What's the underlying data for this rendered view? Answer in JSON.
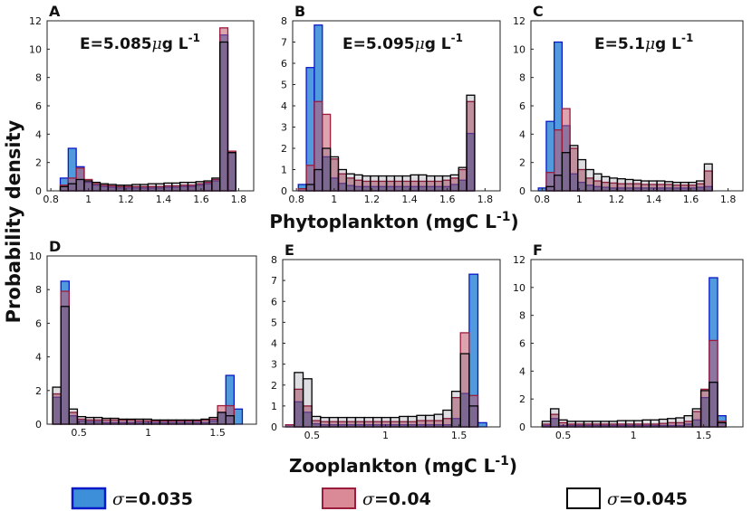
{
  "figure": {
    "ylabel": "Probability density",
    "row1_xlabel": "Phytoplankton (mgC L",
    "row1_xlabel_sup": "-1",
    "row1_xlabel_tail": ")",
    "row2_xlabel": "Zooplankton (mgC L",
    "row2_xlabel_sup": "-1",
    "row2_xlabel_tail": ")"
  },
  "legend": [
    {
      "sigma": "σ",
      "text": "=0.035",
      "fill": "#3d8fd9",
      "stroke": "#0a19c8"
    },
    {
      "sigma": "σ",
      "text": "=0.04",
      "fill": "#d98a96",
      "stroke": "#9c1c3c"
    },
    {
      "sigma": "σ",
      "text": "=0.045",
      "fill": "#ffffff",
      "stroke": "#000000"
    }
  ],
  "colors": {
    "blue_fill": "#3d8fd9",
    "blue_stroke": "#0a19c8",
    "blue_opacity": 0.9,
    "red_fill": "#c0596d",
    "red_stroke": "#9c1c3c",
    "red_opacity": 0.55,
    "black_fill": "#1e1a3a",
    "black_stroke": "#000000",
    "black_opacity": 0.15
  },
  "chart_data": [
    {
      "panel": "A",
      "type": "bar",
      "annotation_prefix": "E=5.085",
      "annotation_mu": "μ",
      "annotation_unit": "g L",
      "annotation_sup": "-1",
      "xlim": [
        0.78,
        1.88
      ],
      "ylim": [
        0,
        12
      ],
      "xticks": [
        0.8,
        1,
        1.2,
        1.4,
        1.6,
        1.8
      ],
      "xticklabels": [
        "0.8",
        "1",
        "1.2",
        "1.4",
        "1.6",
        "1.8"
      ],
      "yticks": [
        0,
        2,
        4,
        6,
        8,
        10,
        12
      ],
      "yticklabels": [
        "0",
        "2",
        "4",
        "6",
        "8",
        "10",
        "12"
      ],
      "bin_start": 0.85,
      "bin_width": 0.0425,
      "series": [
        {
          "name": "σ=0.035",
          "values": [
            0.9,
            3.0,
            1.7,
            0.6,
            0.4,
            0.3,
            0.25,
            0.2,
            0.2,
            0.2,
            0.2,
            0.2,
            0.2,
            0.25,
            0.25,
            0.3,
            0.3,
            0.4,
            0.5,
            0.7,
            11.0,
            2.7,
            0
          ]
        },
        {
          "name": "σ=0.04",
          "values": [
            0.4,
            0.9,
            1.6,
            0.8,
            0.5,
            0.4,
            0.35,
            0.3,
            0.3,
            0.3,
            0.3,
            0.3,
            0.3,
            0.35,
            0.35,
            0.4,
            0.4,
            0.5,
            0.6,
            0.8,
            11.5,
            2.8,
            0
          ]
        },
        {
          "name": "σ=0.045",
          "values": [
            0.3,
            0.5,
            0.8,
            0.7,
            0.6,
            0.5,
            0.45,
            0.4,
            0.4,
            0.45,
            0.45,
            0.5,
            0.5,
            0.55,
            0.55,
            0.6,
            0.6,
            0.65,
            0.7,
            0.9,
            10.5,
            2.7,
            0
          ]
        }
      ]
    },
    {
      "panel": "B",
      "type": "bar",
      "annotation_prefix": "E=5.095",
      "annotation_mu": "μ",
      "annotation_unit": "g L",
      "annotation_sup": "-1",
      "xlim": [
        0.78,
        1.88
      ],
      "ylim": [
        0,
        8
      ],
      "xticks": [
        0.8,
        1,
        1.2,
        1.4,
        1.6,
        1.8
      ],
      "xticklabels": [
        "0.8",
        "1",
        "1.2",
        "1.4",
        "1.6",
        "1.8"
      ],
      "yticks": [
        0,
        1,
        2,
        3,
        4,
        5,
        6,
        7,
        8
      ],
      "yticklabels": [
        "0",
        "1",
        "2",
        "3",
        "4",
        "5",
        "6",
        "7",
        "8"
      ],
      "bin_start": 0.81,
      "bin_width": 0.0425,
      "series": [
        {
          "name": "σ=0.035",
          "values": [
            0.3,
            5.8,
            7.8,
            1.6,
            0.6,
            0.35,
            0.25,
            0.2,
            0.2,
            0.2,
            0.2,
            0.2,
            0.2,
            0.2,
            0.2,
            0.2,
            0.2,
            0.2,
            0.2,
            0.3,
            0.5,
            2.7,
            0
          ]
        },
        {
          "name": "σ=0.04",
          "values": [
            0.1,
            1.2,
            4.2,
            3.6,
            1.5,
            0.8,
            0.6,
            0.5,
            0.45,
            0.45,
            0.45,
            0.45,
            0.45,
            0.45,
            0.45,
            0.45,
            0.45,
            0.45,
            0.5,
            0.6,
            1.0,
            4.2,
            0
          ]
        },
        {
          "name": "σ=0.045",
          "values": [
            0,
            0.3,
            1.0,
            2.0,
            1.6,
            1.0,
            0.8,
            0.75,
            0.7,
            0.7,
            0.7,
            0.7,
            0.7,
            0.7,
            0.75,
            0.75,
            0.7,
            0.7,
            0.7,
            0.75,
            1.1,
            4.5,
            0
          ]
        }
      ]
    },
    {
      "panel": "C",
      "type": "bar",
      "annotation_prefix": "E=5.1",
      "annotation_mu": "μ",
      "annotation_unit": "g L",
      "annotation_sup": "-1",
      "xlim": [
        0.74,
        1.88
      ],
      "ylim": [
        0,
        12
      ],
      "xticks": [
        0.8,
        1,
        1.2,
        1.4,
        1.6,
        1.8
      ],
      "xticklabels": [
        "0.8",
        "1",
        "1.2",
        "1.4",
        "1.6",
        "1.8"
      ],
      "yticks": [
        0,
        2,
        4,
        6,
        8,
        10,
        12
      ],
      "yticklabels": [
        "0",
        "2",
        "4",
        "6",
        "8",
        "10",
        "12"
      ],
      "bin_start": 0.78,
      "bin_width": 0.0425,
      "series": [
        {
          "name": "σ=0.035",
          "values": [
            0.2,
            4.9,
            10.5,
            4.6,
            1.2,
            0.6,
            0.4,
            0.3,
            0.25,
            0.2,
            0.2,
            0.2,
            0.2,
            0.2,
            0.2,
            0.2,
            0.2,
            0.2,
            0.2,
            0.2,
            0.25,
            0.3,
            0
          ]
        },
        {
          "name": "σ=0.04",
          "values": [
            0,
            1.3,
            4.3,
            5.8,
            3.0,
            1.5,
            0.9,
            0.7,
            0.6,
            0.55,
            0.5,
            0.5,
            0.5,
            0.45,
            0.45,
            0.45,
            0.45,
            0.4,
            0.4,
            0.4,
            0.5,
            1.4,
            0
          ]
        },
        {
          "name": "σ=0.045",
          "values": [
            0,
            0.3,
            1.1,
            2.7,
            3.2,
            2.2,
            1.5,
            1.2,
            1.0,
            0.9,
            0.85,
            0.8,
            0.75,
            0.7,
            0.7,
            0.7,
            0.65,
            0.6,
            0.6,
            0.6,
            0.7,
            1.9,
            0
          ]
        }
      ]
    },
    {
      "panel": "D",
      "type": "bar",
      "annotation_prefix": "",
      "xlim": [
        0.27,
        1.78
      ],
      "ylim": [
        0,
        10
      ],
      "xticks": [
        0.5,
        1,
        1.5
      ],
      "xticklabels": [
        "0.5",
        "1",
        "1.5"
      ],
      "yticks": [
        0,
        2,
        4,
        6,
        8,
        10
      ],
      "yticklabels": [
        "0",
        "2",
        "4",
        "6",
        "8",
        "10"
      ],
      "bin_start": 0.31,
      "bin_width": 0.0595,
      "series": [
        {
          "name": "σ=0.035",
          "values": [
            1.6,
            8.5,
            0.5,
            0.2,
            0.15,
            0.15,
            0.1,
            0.1,
            0.1,
            0.1,
            0.1,
            0.1,
            0.1,
            0.1,
            0.1,
            0.1,
            0.1,
            0.1,
            0.1,
            0.2,
            0.7,
            2.9,
            0.9
          ]
        },
        {
          "name": "σ=0.04",
          "values": [
            1.8,
            7.9,
            0.7,
            0.3,
            0.25,
            0.25,
            0.25,
            0.25,
            0.25,
            0.25,
            0.2,
            0.2,
            0.2,
            0.2,
            0.2,
            0.2,
            0.2,
            0.2,
            0.25,
            0.3,
            1.1,
            1.1,
            0
          ]
        },
        {
          "name": "σ=0.045",
          "values": [
            2.2,
            7.0,
            0.9,
            0.45,
            0.4,
            0.4,
            0.35,
            0.35,
            0.3,
            0.3,
            0.3,
            0.3,
            0.25,
            0.25,
            0.25,
            0.25,
            0.25,
            0.25,
            0.3,
            0.4,
            0.7,
            0.5,
            0
          ]
        }
      ]
    },
    {
      "panel": "E",
      "type": "bar",
      "annotation_prefix": "",
      "xlim": [
        0.3,
        1.78
      ],
      "ylim": [
        0,
        8
      ],
      "xticks": [
        0.5,
        1,
        1.5
      ],
      "xticklabels": [
        "0.5",
        "1",
        "1.5"
      ],
      "yticks": [
        0,
        1,
        2,
        3,
        4,
        5,
        6,
        7,
        8
      ],
      "yticklabels": [
        "0",
        "1",
        "2",
        "3",
        "4",
        "5",
        "6",
        "7",
        "8"
      ],
      "bin_start": 0.32,
      "bin_width": 0.0595,
      "series": [
        {
          "name": "σ=0.035",
          "values": [
            0.1,
            1.2,
            0.7,
            0.15,
            0.1,
            0.1,
            0.1,
            0.1,
            0.1,
            0.1,
            0.1,
            0.1,
            0.1,
            0.1,
            0.1,
            0.1,
            0.1,
            0.1,
            0.1,
            0.4,
            1.6,
            7.3,
            0.2
          ]
        },
        {
          "name": "σ=0.04",
          "values": [
            0.1,
            1.8,
            1.0,
            0.3,
            0.25,
            0.25,
            0.25,
            0.25,
            0.25,
            0.25,
            0.25,
            0.25,
            0.25,
            0.25,
            0.25,
            0.3,
            0.3,
            0.3,
            0.4,
            1.4,
            4.5,
            1.5,
            0
          ]
        },
        {
          "name": "σ=0.045",
          "values": [
            0,
            2.6,
            2.3,
            0.5,
            0.45,
            0.45,
            0.45,
            0.45,
            0.45,
            0.45,
            0.45,
            0.45,
            0.45,
            0.5,
            0.5,
            0.55,
            0.55,
            0.6,
            0.8,
            1.7,
            3.5,
            1.0,
            0
          ]
        }
      ]
    },
    {
      "panel": "F",
      "type": "bar",
      "annotation_prefix": "",
      "xlim": [
        0.27,
        1.78
      ],
      "ylim": [
        0,
        12
      ],
      "xticks": [
        0.5,
        1,
        1.5
      ],
      "xticklabels": [
        "0.5",
        "1",
        "1.5"
      ],
      "yticks": [
        0,
        2,
        4,
        6,
        8,
        10,
        12
      ],
      "yticklabels": [
        "0",
        "2",
        "4",
        "6",
        "8",
        "10",
        "12"
      ],
      "bin_start": 0.35,
      "bin_width": 0.0595,
      "series": [
        {
          "name": "σ=0.035",
          "values": [
            0.1,
            0.6,
            0.1,
            0.1,
            0.1,
            0.1,
            0.1,
            0.1,
            0.1,
            0.1,
            0.1,
            0.1,
            0.1,
            0.1,
            0.1,
            0.1,
            0.1,
            0.2,
            0.5,
            2.1,
            10.7,
            0.8,
            0
          ]
        },
        {
          "name": "σ=0.04",
          "values": [
            0.2,
            0.9,
            0.3,
            0.2,
            0.2,
            0.2,
            0.2,
            0.2,
            0.2,
            0.2,
            0.2,
            0.2,
            0.2,
            0.2,
            0.25,
            0.3,
            0.3,
            0.4,
            1.1,
            2.7,
            6.2,
            0.4,
            0
          ]
        },
        {
          "name": "σ=0.045",
          "values": [
            0.4,
            1.3,
            0.5,
            0.4,
            0.4,
            0.4,
            0.4,
            0.4,
            0.4,
            0.45,
            0.45,
            0.45,
            0.5,
            0.5,
            0.55,
            0.6,
            0.65,
            0.8,
            1.3,
            2.6,
            3.2,
            0.3,
            0
          ]
        }
      ]
    }
  ]
}
